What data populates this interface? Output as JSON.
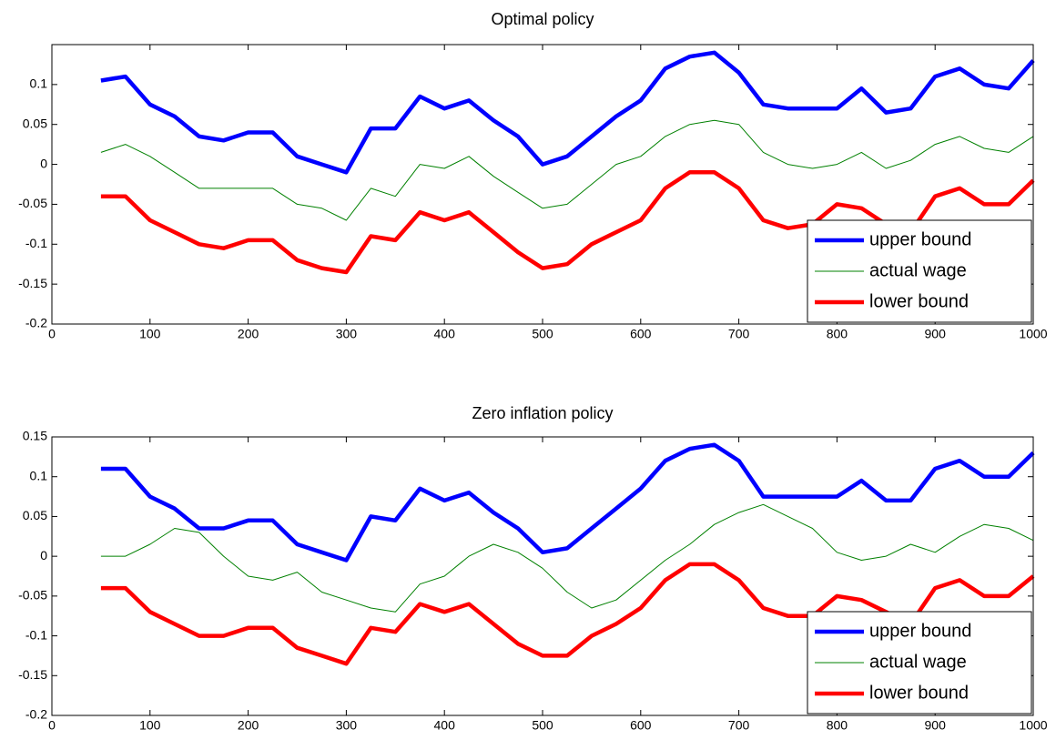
{
  "chart_data": [
    {
      "type": "line",
      "title": "Optimal policy",
      "x": [
        50,
        75,
        100,
        125,
        150,
        175,
        200,
        225,
        250,
        275,
        300,
        325,
        350,
        375,
        400,
        425,
        450,
        475,
        500,
        525,
        550,
        575,
        600,
        625,
        650,
        675,
        700,
        725,
        750,
        775,
        800,
        825,
        850,
        875,
        900,
        925,
        950,
        975,
        1000
      ],
      "series": [
        {
          "name": "upper bound",
          "color": "#0000ff",
          "values": [
            0.105,
            0.11,
            0.075,
            0.06,
            0.035,
            0.03,
            0.04,
            0.04,
            0.01,
            0.0,
            -0.01,
            0.045,
            0.045,
            0.085,
            0.07,
            0.08,
            0.055,
            0.035,
            0.0,
            0.01,
            0.035,
            0.06,
            0.08,
            0.12,
            0.135,
            0.14,
            0.115,
            0.075,
            0.07,
            0.07,
            0.07,
            0.095,
            0.065,
            0.07,
            0.11,
            0.12,
            0.1,
            0.095,
            0.13
          ]
        },
        {
          "name": "actual wage",
          "color": "#008000",
          "values": [
            0.015,
            0.025,
            0.01,
            -0.01,
            -0.03,
            -0.03,
            -0.03,
            -0.03,
            -0.05,
            -0.055,
            -0.07,
            -0.03,
            -0.04,
            0.0,
            -0.005,
            0.01,
            -0.015,
            -0.035,
            -0.055,
            -0.05,
            -0.025,
            0.0,
            0.01,
            0.035,
            0.05,
            0.055,
            0.05,
            0.015,
            0.0,
            -0.005,
            0.0,
            0.015,
            -0.005,
            0.005,
            0.025,
            0.035,
            0.02,
            0.015,
            0.035
          ]
        },
        {
          "name": "lower bound",
          "color": "#ff0000",
          "values": [
            -0.04,
            -0.04,
            -0.07,
            -0.085,
            -0.1,
            -0.105,
            -0.095,
            -0.095,
            -0.12,
            -0.13,
            -0.135,
            -0.09,
            -0.095,
            -0.06,
            -0.07,
            -0.06,
            -0.085,
            -0.11,
            -0.13,
            -0.125,
            -0.1,
            -0.085,
            -0.07,
            -0.03,
            -0.01,
            -0.01,
            -0.03,
            -0.07,
            -0.08,
            -0.075,
            -0.05,
            -0.055,
            -0.075,
            -0.085,
            -0.04,
            -0.03,
            -0.05,
            -0.05,
            -0.02
          ]
        }
      ],
      "xlim": [
        0,
        1000
      ],
      "xticks": [
        0,
        100,
        200,
        300,
        400,
        500,
        600,
        700,
        800,
        900,
        1000
      ],
      "ylim": [
        -0.2,
        0.15
      ],
      "yticks": [
        -0.2,
        -0.15,
        -0.1,
        -0.05,
        0,
        0.05,
        0.1
      ],
      "legend": "lower right"
    },
    {
      "type": "line",
      "title": "Zero inflation policy",
      "x": [
        50,
        75,
        100,
        125,
        150,
        175,
        200,
        225,
        250,
        275,
        300,
        325,
        350,
        375,
        400,
        425,
        450,
        475,
        500,
        525,
        550,
        575,
        600,
        625,
        650,
        675,
        700,
        725,
        750,
        775,
        800,
        825,
        850,
        875,
        900,
        925,
        950,
        975,
        1000
      ],
      "series": [
        {
          "name": "upper bound",
          "color": "#0000ff",
          "values": [
            0.11,
            0.11,
            0.075,
            0.06,
            0.035,
            0.035,
            0.045,
            0.045,
            0.015,
            0.005,
            -0.005,
            0.05,
            0.045,
            0.085,
            0.07,
            0.08,
            0.055,
            0.035,
            0.005,
            0.01,
            0.035,
            0.06,
            0.085,
            0.12,
            0.135,
            0.14,
            0.12,
            0.075,
            0.075,
            0.075,
            0.075,
            0.095,
            0.07,
            0.07,
            0.11,
            0.12,
            0.1,
            0.1,
            0.13
          ]
        },
        {
          "name": "actual wage",
          "color": "#008000",
          "values": [
            0.0,
            0.0,
            0.015,
            0.035,
            0.03,
            0.0,
            -0.025,
            -0.03,
            -0.02,
            -0.045,
            -0.055,
            -0.065,
            -0.07,
            -0.035,
            -0.025,
            0.0,
            0.015,
            0.005,
            -0.015,
            -0.045,
            -0.065,
            -0.055,
            -0.03,
            -0.005,
            0.015,
            0.04,
            0.055,
            0.065,
            0.05,
            0.035,
            0.005,
            -0.005,
            0.0,
            0.015,
            0.005,
            0.025,
            0.04,
            0.035,
            0.02
          ]
        },
        {
          "name": "lower bound",
          "color": "#ff0000",
          "values": [
            -0.04,
            -0.04,
            -0.07,
            -0.085,
            -0.1,
            -0.1,
            -0.09,
            -0.09,
            -0.115,
            -0.125,
            -0.135,
            -0.09,
            -0.095,
            -0.06,
            -0.07,
            -0.06,
            -0.085,
            -0.11,
            -0.125,
            -0.125,
            -0.1,
            -0.085,
            -0.065,
            -0.03,
            -0.01,
            -0.01,
            -0.03,
            -0.065,
            -0.075,
            -0.075,
            -0.05,
            -0.055,
            -0.07,
            -0.085,
            -0.04,
            -0.03,
            -0.05,
            -0.05,
            -0.025
          ]
        }
      ],
      "xlim": [
        0,
        1000
      ],
      "xticks": [
        0,
        100,
        200,
        300,
        400,
        500,
        600,
        700,
        800,
        900,
        1000
      ],
      "ylim": [
        -0.2,
        0.15
      ],
      "yticks": [
        -0.2,
        -0.15,
        -0.1,
        -0.05,
        0,
        0.05,
        0.1,
        0.15
      ],
      "legend": "lower right"
    }
  ]
}
